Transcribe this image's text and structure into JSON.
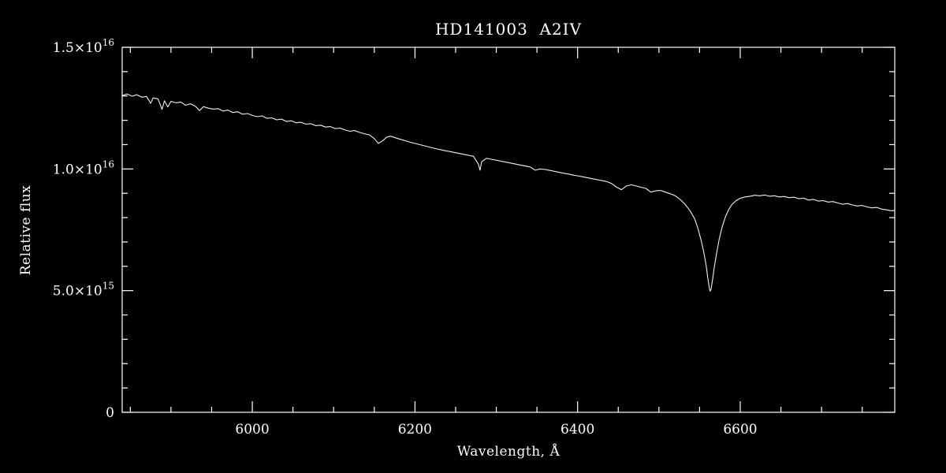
{
  "colors": {
    "background": "#000000",
    "foreground": "#ffffff",
    "line": "#f2f2f2"
  },
  "chart_data": {
    "type": "line",
    "title": "HD141003  A2IV",
    "xlabel": "Wavelength, Å",
    "ylabel": "Relative flux",
    "xlim": [
      5840,
      6790
    ],
    "ylim_1e15": [
      0,
      15
    ],
    "grid": false,
    "legend": "none",
    "x_major_ticks": [
      {
        "value": 6000,
        "label": "6000"
      },
      {
        "value": 6200,
        "label": "6200"
      },
      {
        "value": 6400,
        "label": "6400"
      },
      {
        "value": 6600,
        "label": "6600"
      }
    ],
    "x_minor_step": 50,
    "y_major_ticks": [
      {
        "value": 0,
        "label": "0"
      },
      {
        "value": 5,
        "label": "5.0×10^15"
      },
      {
        "value": 10,
        "label": "1.0×10^16"
      },
      {
        "value": 15,
        "label": "1.5×10^16"
      }
    ],
    "y_minor_step": 1,
    "flux_unit": "1e15",
    "points": [
      [
        5840,
        13.02
      ],
      [
        5846,
        13.08
      ],
      [
        5852,
        12.99
      ],
      [
        5858,
        13.05
      ],
      [
        5864,
        12.95
      ],
      [
        5870,
        12.98
      ],
      [
        5875,
        12.7
      ],
      [
        5878,
        12.92
      ],
      [
        5884,
        12.88
      ],
      [
        5889,
        12.45
      ],
      [
        5892,
        12.8
      ],
      [
        5896,
        12.55
      ],
      [
        5900,
        12.78
      ],
      [
        5906,
        12.72
      ],
      [
        5912,
        12.75
      ],
      [
        5918,
        12.62
      ],
      [
        5924,
        12.68
      ],
      [
        5930,
        12.58
      ],
      [
        5935,
        12.4
      ],
      [
        5940,
        12.56
      ],
      [
        5946,
        12.5
      ],
      [
        5952,
        12.46
      ],
      [
        5958,
        12.48
      ],
      [
        5964,
        12.38
      ],
      [
        5970,
        12.42
      ],
      [
        5976,
        12.32
      ],
      [
        5982,
        12.35
      ],
      [
        5988,
        12.25
      ],
      [
        5994,
        12.28
      ],
      [
        6000,
        12.2
      ],
      [
        6006,
        12.15
      ],
      [
        6012,
        12.18
      ],
      [
        6018,
        12.08
      ],
      [
        6024,
        12.1
      ],
      [
        6030,
        12.02
      ],
      [
        6036,
        12.05
      ],
      [
        6042,
        11.95
      ],
      [
        6048,
        11.98
      ],
      [
        6054,
        11.9
      ],
      [
        6060,
        11.92
      ],
      [
        6066,
        11.84
      ],
      [
        6072,
        11.86
      ],
      [
        6078,
        11.78
      ],
      [
        6084,
        11.8
      ],
      [
        6090,
        11.72
      ],
      [
        6096,
        11.74
      ],
      [
        6102,
        11.66
      ],
      [
        6108,
        11.68
      ],
      [
        6114,
        11.6
      ],
      [
        6120,
        11.55
      ],
      [
        6126,
        11.58
      ],
      [
        6132,
        11.5
      ],
      [
        6138,
        11.45
      ],
      [
        6144,
        11.4
      ],
      [
        6150,
        11.25
      ],
      [
        6155,
        11.05
      ],
      [
        6160,
        11.15
      ],
      [
        6165,
        11.3
      ],
      [
        6170,
        11.35
      ],
      [
        6176,
        11.28
      ],
      [
        6182,
        11.22
      ],
      [
        6188,
        11.16
      ],
      [
        6194,
        11.1
      ],
      [
        6200,
        11.05
      ],
      [
        6206,
        11.0
      ],
      [
        6212,
        10.95
      ],
      [
        6218,
        10.9
      ],
      [
        6224,
        10.85
      ],
      [
        6230,
        10.8
      ],
      [
        6236,
        10.76
      ],
      [
        6242,
        10.72
      ],
      [
        6248,
        10.68
      ],
      [
        6254,
        10.64
      ],
      [
        6260,
        10.6
      ],
      [
        6266,
        10.56
      ],
      [
        6272,
        10.52
      ],
      [
        6278,
        10.2
      ],
      [
        6280,
        9.95
      ],
      [
        6282,
        10.3
      ],
      [
        6288,
        10.44
      ],
      [
        6294,
        10.4
      ],
      [
        6300,
        10.36
      ],
      [
        6306,
        10.32
      ],
      [
        6312,
        10.28
      ],
      [
        6318,
        10.24
      ],
      [
        6324,
        10.2
      ],
      [
        6330,
        10.16
      ],
      [
        6336,
        10.12
      ],
      [
        6342,
        10.08
      ],
      [
        6348,
        9.95
      ],
      [
        6354,
        10.0
      ],
      [
        6360,
        9.98
      ],
      [
        6366,
        9.94
      ],
      [
        6372,
        9.9
      ],
      [
        6378,
        9.86
      ],
      [
        6384,
        9.82
      ],
      [
        6390,
        9.78
      ],
      [
        6396,
        9.74
      ],
      [
        6400,
        9.72
      ],
      [
        6406,
        9.68
      ],
      [
        6412,
        9.64
      ],
      [
        6418,
        9.6
      ],
      [
        6424,
        9.56
      ],
      [
        6430,
        9.52
      ],
      [
        6436,
        9.48
      ],
      [
        6442,
        9.4
      ],
      [
        6448,
        9.25
      ],
      [
        6454,
        9.15
      ],
      [
        6460,
        9.3
      ],
      [
        6466,
        9.35
      ],
      [
        6472,
        9.3
      ],
      [
        6478,
        9.25
      ],
      [
        6484,
        9.2
      ],
      [
        6490,
        9.05
      ],
      [
        6496,
        9.1
      ],
      [
        6502,
        9.12
      ],
      [
        6508,
        9.05
      ],
      [
        6514,
        8.98
      ],
      [
        6520,
        8.9
      ],
      [
        6526,
        8.75
      ],
      [
        6532,
        8.55
      ],
      [
        6538,
        8.3
      ],
      [
        6544,
        7.95
      ],
      [
        6548,
        7.55
      ],
      [
        6552,
        7.05
      ],
      [
        6555,
        6.6
      ],
      [
        6558,
        6.05
      ],
      [
        6560,
        5.55
      ],
      [
        6562,
        5.1
      ],
      [
        6563,
        4.98
      ],
      [
        6564,
        5.05
      ],
      [
        6566,
        5.45
      ],
      [
        6568,
        5.95
      ],
      [
        6571,
        6.55
      ],
      [
        6574,
        7.1
      ],
      [
        6578,
        7.65
      ],
      [
        6582,
        8.05
      ],
      [
        6586,
        8.35
      ],
      [
        6590,
        8.55
      ],
      [
        6595,
        8.7
      ],
      [
        6600,
        8.8
      ],
      [
        6606,
        8.85
      ],
      [
        6612,
        8.88
      ],
      [
        6618,
        8.92
      ],
      [
        6624,
        8.9
      ],
      [
        6630,
        8.93
      ],
      [
        6636,
        8.88
      ],
      [
        6642,
        8.9
      ],
      [
        6648,
        8.85
      ],
      [
        6654,
        8.87
      ],
      [
        6660,
        8.82
      ],
      [
        6666,
        8.84
      ],
      [
        6672,
        8.78
      ],
      [
        6678,
        8.8
      ],
      [
        6684,
        8.72
      ],
      [
        6690,
        8.75
      ],
      [
        6696,
        8.68
      ],
      [
        6702,
        8.7
      ],
      [
        6708,
        8.64
      ],
      [
        6714,
        8.66
      ],
      [
        6720,
        8.6
      ],
      [
        6726,
        8.55
      ],
      [
        6732,
        8.58
      ],
      [
        6738,
        8.52
      ],
      [
        6744,
        8.48
      ],
      [
        6750,
        8.5
      ],
      [
        6756,
        8.44
      ],
      [
        6762,
        8.4
      ],
      [
        6768,
        8.42
      ],
      [
        6774,
        8.35
      ],
      [
        6780,
        8.32
      ],
      [
        6786,
        8.28
      ],
      [
        6790,
        8.3
      ]
    ]
  }
}
